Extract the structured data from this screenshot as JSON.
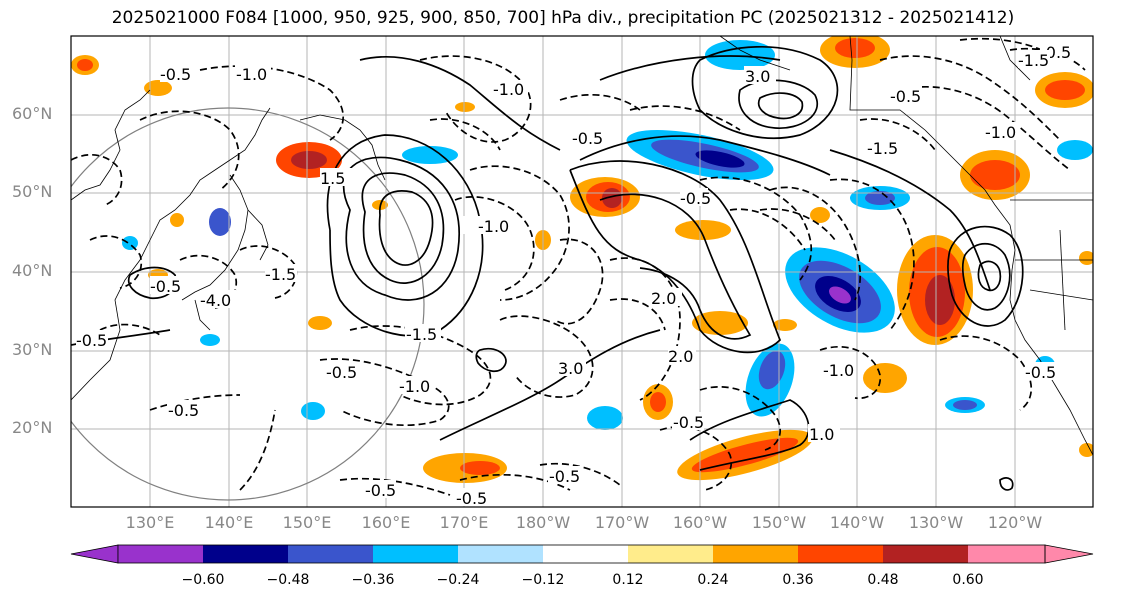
{
  "title": "2025021000 F084 [1000, 950, 925, 900, 850, 700] hPa div., precipitation PC (2025021312 - 2025021412)",
  "map": {
    "lat_labels": [
      "60°N",
      "50°N",
      "40°N",
      "30°N",
      "20°N"
    ],
    "lon_labels": [
      "130°E",
      "140°E",
      "150°E",
      "160°E",
      "170°E",
      "180°W",
      "170°W",
      "160°W",
      "150°W",
      "140°W",
      "130°W",
      "120°W"
    ],
    "contour_labels": [
      "-1.0",
      "-0.5",
      "-1.0",
      "-0.5",
      "-1.5",
      "-1.0",
      "-0.5",
      "3.0",
      "2.0",
      "1.5",
      "-1.5",
      "-0.5",
      "-1.0",
      "-0.5",
      "-0.5",
      "-0.5",
      "-0.5",
      "-0.5",
      "1.0",
      "2.0",
      "3.0",
      "-0.5",
      "-1.0",
      "-0.5",
      "-0.5",
      "-1.5",
      "-1.0",
      "-0.5",
      "-1.5",
      "-4.0",
      "-0.5"
    ]
  },
  "colorbar": {
    "ticks": [
      "−0.60",
      "−0.48",
      "−0.36",
      "−0.24",
      "−0.12",
      "0.12",
      "0.24",
      "0.36",
      "0.48",
      "0.60"
    ],
    "colors": [
      "#9932cc",
      "#00008b",
      "#3a55cc",
      "#00bfff",
      "#b0e2ff",
      "#ffffff",
      "#ffec8b",
      "#ffa500",
      "#ff4500",
      "#b22222",
      "#ff88aa"
    ]
  }
}
